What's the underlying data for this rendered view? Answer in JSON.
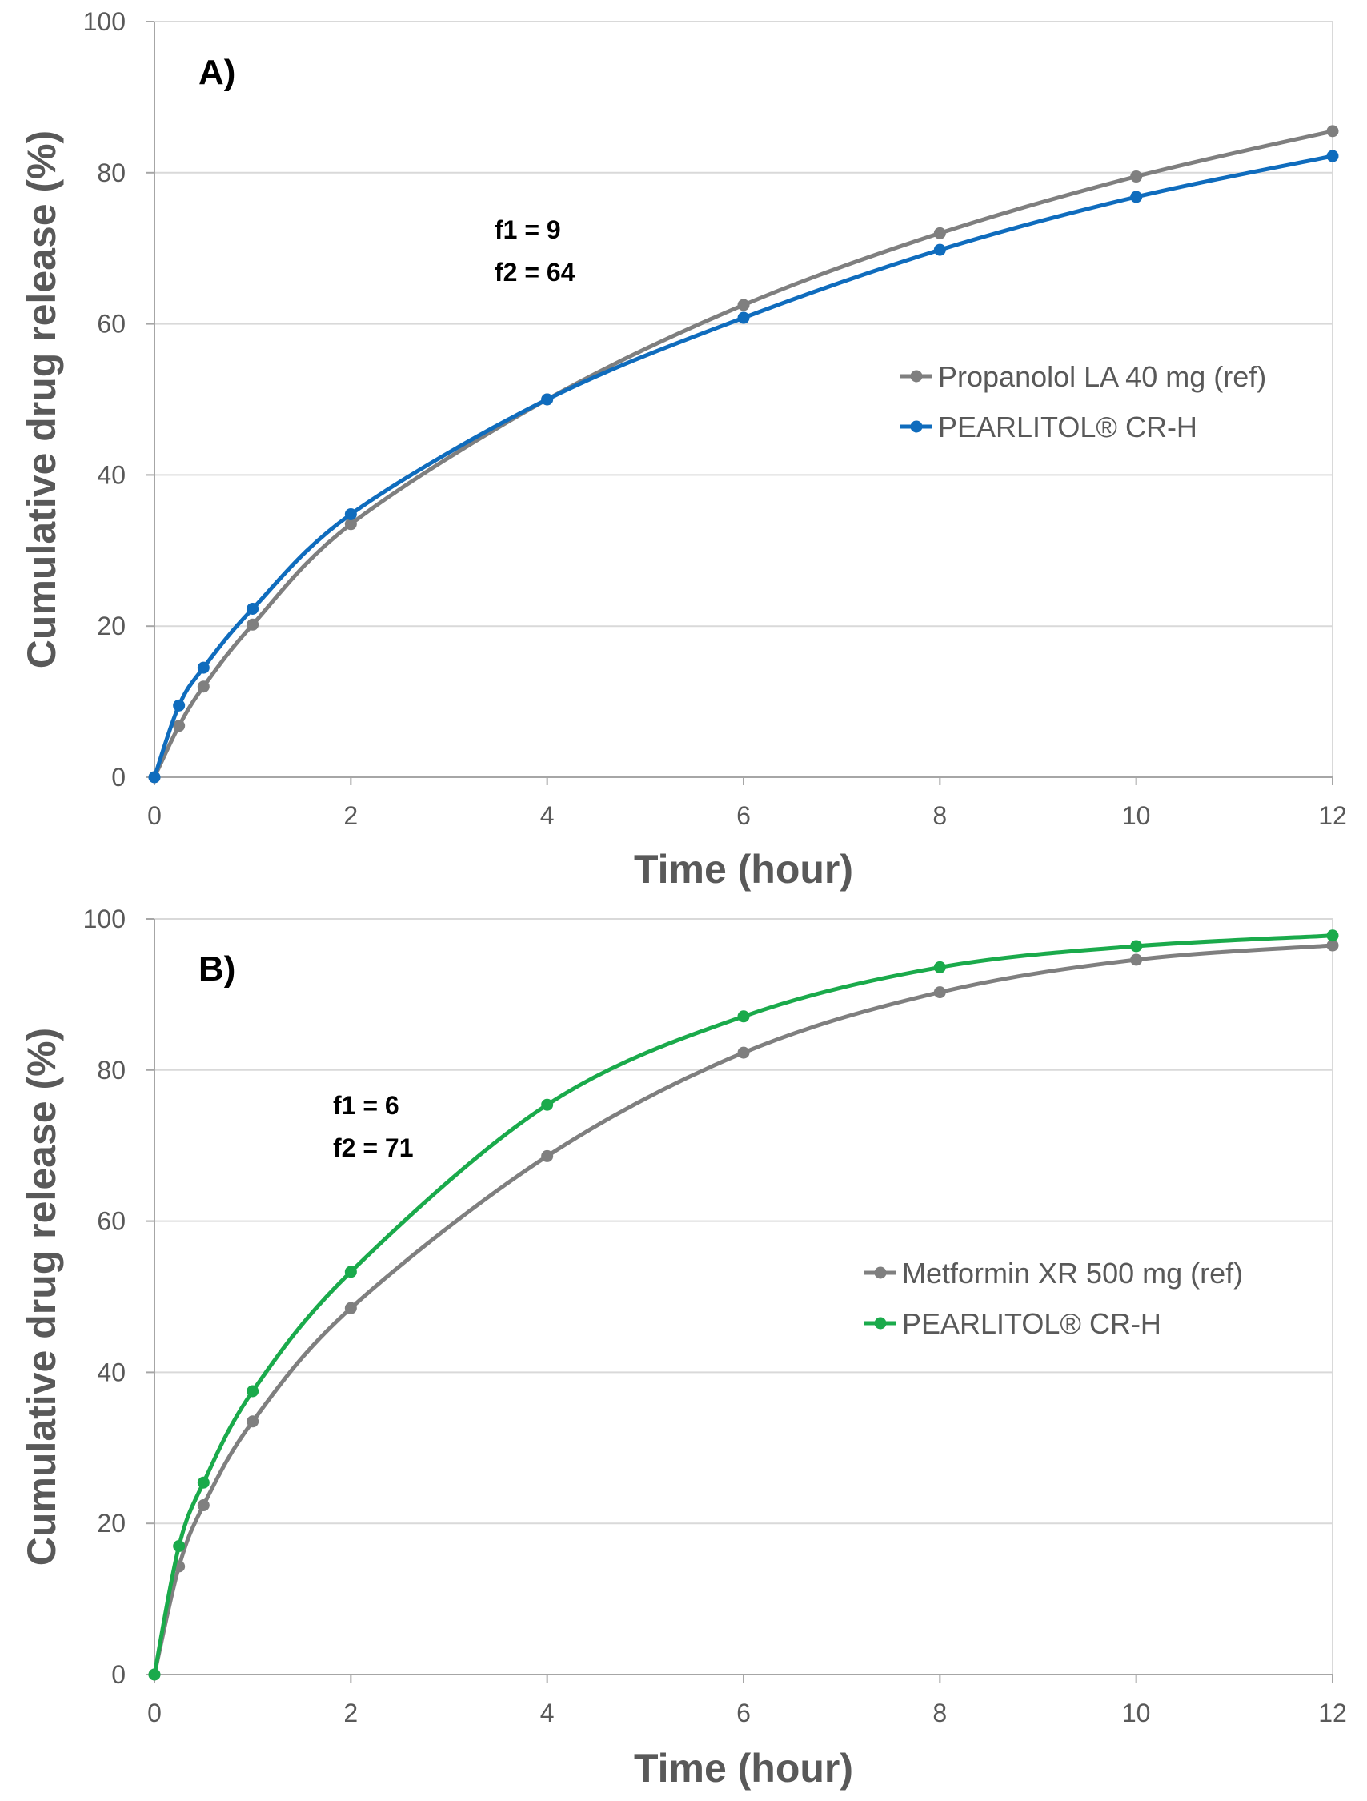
{
  "chart_data": [
    {
      "type": "line",
      "panel_label": "A)",
      "xlabel": "Time (hour)",
      "ylabel": "Cumulative drug release (%)",
      "xlim": [
        0,
        12
      ],
      "ylim": [
        0,
        100
      ],
      "xticks": [
        "0",
        "2",
        "4",
        "6",
        "8",
        "10",
        "12"
      ],
      "yticks": [
        "0",
        "20",
        "40",
        "60",
        "80",
        "100"
      ],
      "grid": "horizontal",
      "legend_position": "right-middle",
      "annotations": [
        "f1 = 9",
        "f2 = 64"
      ],
      "series": [
        {
          "name": "Propanolol LA 40 mg (ref)",
          "color": "#7f7f7f",
          "x": [
            0,
            0.25,
            0.5,
            1,
            2,
            4,
            6,
            8,
            10,
            12
          ],
          "y": [
            0,
            6.8,
            12,
            20.2,
            33.5,
            50,
            62.5,
            72,
            79.5,
            85.5
          ]
        },
        {
          "name": "PEARLITOL® CR-H",
          "color": "#0f6cbd",
          "x": [
            0,
            0.25,
            0.5,
            1,
            2,
            4,
            6,
            8,
            10,
            12
          ],
          "y": [
            0,
            9.5,
            14.5,
            22.3,
            34.8,
            50,
            60.8,
            69.8,
            76.8,
            82.2
          ]
        }
      ]
    },
    {
      "type": "line",
      "panel_label": "B)",
      "xlabel": "Time (hour)",
      "ylabel": "Cumulative drug release (%)",
      "xlim": [
        0,
        12
      ],
      "ylim": [
        0,
        100
      ],
      "xticks": [
        "0",
        "2",
        "4",
        "6",
        "8",
        "10",
        "12"
      ],
      "yticks": [
        "0",
        "20",
        "40",
        "60",
        "80",
        "100"
      ],
      "grid": "horizontal",
      "legend_position": "right-middle",
      "annotations": [
        "f1 = 6",
        "f2 = 71"
      ],
      "series": [
        {
          "name": "Metformin XR 500 mg (ref)",
          "color": "#7f7f7f",
          "x": [
            0,
            0.25,
            0.5,
            1,
            2,
            4,
            6,
            8,
            10,
            12
          ],
          "y": [
            0,
            14.3,
            22.4,
            33.5,
            48.5,
            68.6,
            82.3,
            90.3,
            94.6,
            96.5
          ]
        },
        {
          "name": "PEARLITOL® CR-H",
          "color": "#1aaa4b",
          "x": [
            0,
            0.25,
            0.5,
            1,
            2,
            4,
            6,
            8,
            10,
            12
          ],
          "y": [
            0,
            17,
            25.4,
            37.5,
            53.3,
            75.4,
            87.1,
            93.6,
            96.4,
            97.8
          ]
        }
      ]
    }
  ]
}
